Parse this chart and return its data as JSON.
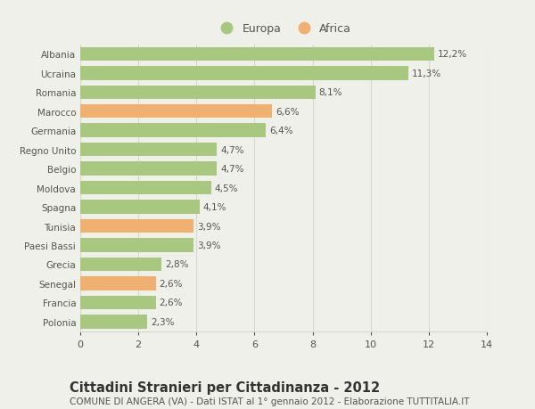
{
  "categories": [
    "Albania",
    "Ucraina",
    "Romania",
    "Marocco",
    "Germania",
    "Regno Unito",
    "Belgio",
    "Moldova",
    "Spagna",
    "Tunisia",
    "Paesi Bassi",
    "Grecia",
    "Senegal",
    "Francia",
    "Polonia"
  ],
  "values": [
    12.2,
    11.3,
    8.1,
    6.6,
    6.4,
    4.7,
    4.7,
    4.5,
    4.1,
    3.9,
    3.9,
    2.8,
    2.6,
    2.6,
    2.3
  ],
  "labels": [
    "12,2%",
    "11,3%",
    "8,1%",
    "6,6%",
    "6,4%",
    "4,7%",
    "4,7%",
    "4,5%",
    "4,1%",
    "3,9%",
    "3,9%",
    "2,8%",
    "2,6%",
    "2,6%",
    "2,3%"
  ],
  "continents": [
    "Europa",
    "Europa",
    "Europa",
    "Africa",
    "Europa",
    "Europa",
    "Europa",
    "Europa",
    "Europa",
    "Africa",
    "Europa",
    "Europa",
    "Africa",
    "Europa",
    "Europa"
  ],
  "europe_color": "#a8c880",
  "africa_color": "#f0b070",
  "bg_color": "#f0f0ea",
  "title": "Cittadini Stranieri per Cittadinanza - 2012",
  "subtitle": "COMUNE DI ANGERA (VA) - Dati ISTAT al 1° gennaio 2012 - Elaborazione TUTTITALIA.IT",
  "xlim": [
    0,
    14
  ],
  "xticks": [
    0,
    2,
    4,
    6,
    8,
    10,
    12,
    14
  ],
  "grid_color": "#d8d8d0",
  "text_color": "#555550",
  "label_fontsize": 7.5,
  "tick_fontsize": 8,
  "title_fontsize": 10.5,
  "subtitle_fontsize": 7.5
}
